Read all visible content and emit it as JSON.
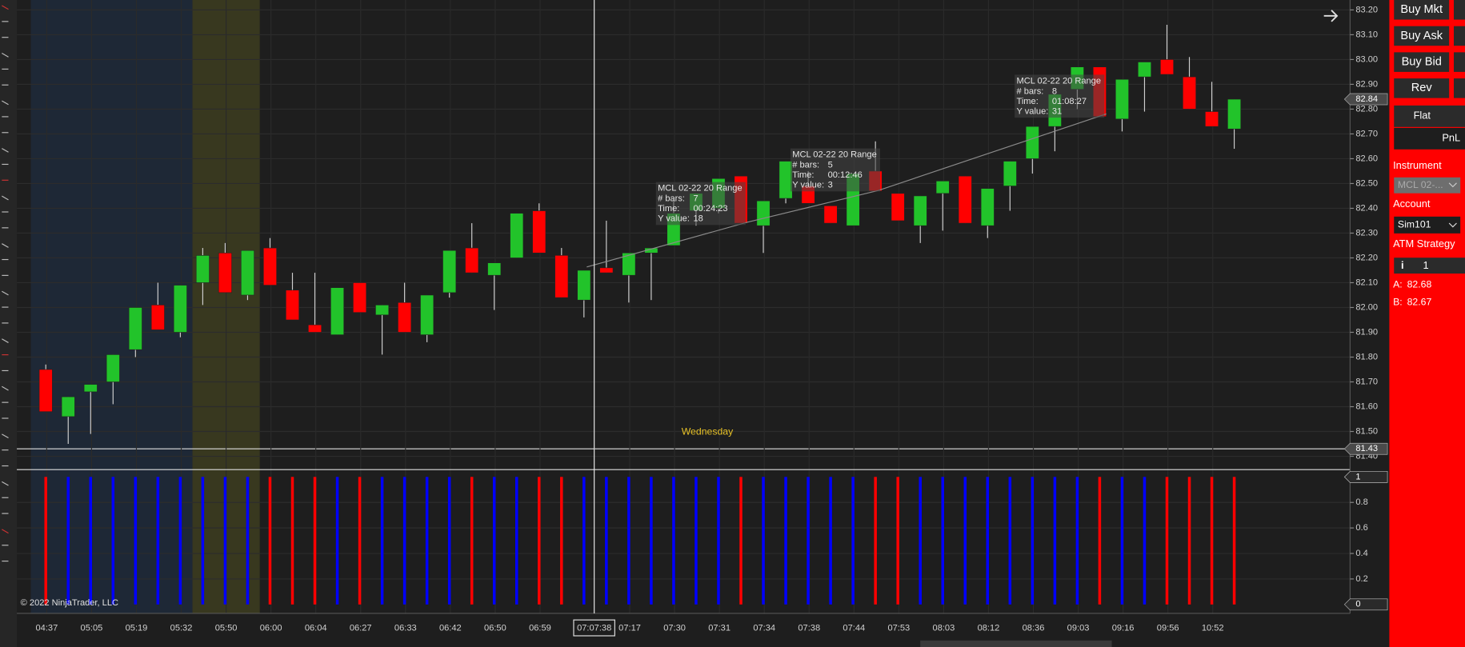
{
  "chart": {
    "type": "candlestick",
    "categories": [
      "04:37",
      null,
      "05:05",
      null,
      "05:19",
      null,
      "05:32",
      null,
      "05:50",
      null,
      "06:00",
      null,
      "06:04",
      null,
      "06:27",
      null,
      "06:33",
      null,
      "06:42",
      null,
      "06:50",
      null,
      "06:59",
      null,
      "07:07:38",
      null,
      "07:17",
      null,
      "07:30",
      null,
      "07:31",
      null,
      "07:34",
      null,
      "07:38",
      null,
      "07:44",
      null,
      "07:53",
      null,
      "08:03",
      null,
      "08:12",
      null,
      "08:36",
      null,
      "09:03",
      null,
      "09:16",
      null,
      "09:56",
      null,
      "10:52",
      null
    ],
    "open": [
      81.75,
      81.56,
      81.66,
      81.7,
      81.83,
      82.01,
      81.9,
      82.1,
      82.22,
      82.05,
      82.24,
      82.07,
      81.93,
      81.89,
      82.1,
      81.97,
      82.02,
      81.89,
      82.06,
      82.24,
      82.13,
      82.2,
      82.39,
      82.21,
      82.03,
      82.16,
      82.13,
      82.22,
      82.25,
      82.39,
      82.4,
      82.53,
      82.33,
      82.44,
      82.49,
      82.41,
      82.33,
      82.55,
      82.46,
      82.33,
      82.46,
      82.53,
      82.33,
      82.49,
      82.6,
      82.73,
      82.88,
      82.97,
      82.76,
      82.93,
      83.0,
      82.93,
      82.79,
      82.72
    ],
    "high": [
      81.77,
      81.64,
      81.69,
      81.81,
      82.0,
      82.1,
      82.09,
      82.24,
      82.26,
      82.23,
      82.28,
      82.14,
      82.14,
      82.08,
      82.1,
      82.01,
      82.1,
      82.05,
      82.23,
      82.34,
      82.18,
      82.38,
      82.42,
      82.24,
      82.15,
      82.35,
      82.22,
      82.24,
      82.43,
      82.46,
      82.52,
      82.53,
      82.43,
      82.59,
      82.55,
      82.41,
      82.54,
      82.67,
      82.46,
      82.45,
      82.51,
      82.53,
      82.48,
      82.59,
      82.73,
      82.86,
      82.97,
      82.97,
      82.92,
      82.99,
      83.14,
      83.01,
      82.91,
      82.84
    ],
    "low": [
      81.58,
      81.45,
      81.49,
      81.61,
      81.8,
      81.91,
      81.88,
      82.01,
      82.06,
      82.03,
      82.09,
      81.95,
      81.9,
      81.89,
      81.98,
      81.81,
      81.9,
      81.86,
      82.04,
      82.14,
      81.99,
      82.2,
      82.22,
      82.04,
      81.96,
      82.14,
      82.02,
      82.03,
      82.25,
      82.33,
      82.38,
      82.34,
      82.22,
      82.42,
      82.42,
      82.34,
      82.33,
      82.47,
      82.35,
      82.26,
      82.31,
      82.34,
      82.28,
      82.39,
      82.54,
      82.63,
      82.8,
      82.77,
      82.71,
      82.79,
      82.94,
      82.8,
      82.73,
      82.64
    ],
    "close": [
      81.58,
      81.64,
      81.69,
      81.81,
      82.0,
      81.91,
      82.09,
      82.21,
      82.06,
      82.23,
      82.09,
      81.95,
      81.9,
      82.08,
      81.98,
      82.01,
      81.9,
      82.05,
      82.23,
      82.14,
      82.18,
      82.38,
      82.22,
      82.04,
      82.15,
      82.14,
      82.22,
      82.24,
      82.38,
      82.46,
      82.52,
      82.34,
      82.43,
      82.59,
      82.42,
      82.34,
      82.54,
      82.47,
      82.35,
      82.45,
      82.51,
      82.34,
      82.48,
      82.59,
      82.73,
      82.86,
      82.97,
      82.77,
      82.92,
      82.99,
      82.94,
      82.8,
      82.73,
      82.84
    ],
    "up_color": "#22c32a",
    "down_color": "#ff0000",
    "ylim": [
      81.35,
      83.24
    ],
    "yticks": [
      {
        "value": 81.4,
        "label": "81.40"
      },
      {
        "value": 81.5,
        "label": "81.50"
      },
      {
        "value": 81.6,
        "label": "81.60"
      },
      {
        "value": 81.7,
        "label": "81.70"
      },
      {
        "value": 81.8,
        "label": "81.80"
      },
      {
        "value": 81.9,
        "label": "81.90"
      },
      {
        "value": 82,
        "label": "82.00"
      },
      {
        "value": 82.1,
        "label": "82.10"
      },
      {
        "value": 82.2,
        "label": "82.20"
      },
      {
        "value": 82.3,
        "label": "82.30"
      },
      {
        "value": 82.4,
        "label": "82.40"
      },
      {
        "value": 82.5,
        "label": "82.50"
      },
      {
        "value": 82.6,
        "label": "82.60"
      },
      {
        "value": 82.7,
        "label": "82.70"
      },
      {
        "value": 82.8,
        "label": "82.80"
      },
      {
        "value": 82.9,
        "label": "82.90"
      },
      {
        "value": 83,
        "label": "83.00"
      },
      {
        "value": 83.1,
        "label": "83.10"
      },
      {
        "value": 83.2,
        "label": "83.20"
      }
    ],
    "markers": [
      {
        "value": 82.84,
        "label": "82.84"
      },
      {
        "value": 81.43,
        "label": "81.43"
      }
    ],
    "grid": true,
    "annotation": "Wednesday",
    "copyright": "© 2022 NinjaTrader, LLC",
    "tooltips": [
      {
        "title": "MCL 02-22 20 Range",
        "rows": [
          [
            "# bars:",
            "7"
          ],
          [
            "Time:",
            "00:24:23"
          ],
          [
            "Y value:",
            "18"
          ]
        ]
      },
      {
        "title": "MCL 02-22 20 Range",
        "rows": [
          [
            "# bars:",
            "5"
          ],
          [
            "Time:",
            "00:12:46"
          ],
          [
            "Y value:",
            "3"
          ]
        ]
      },
      {
        "title": "MCL 02-22 20 Range",
        "rows": [
          [
            "# bars:",
            "8"
          ],
          [
            "Time:",
            "01:08:27"
          ],
          [
            "Y value:",
            "31"
          ]
        ]
      }
    ],
    "indicator": {
      "type": "bar",
      "values": [
        1,
        1,
        1,
        1,
        1,
        1,
        1,
        1,
        1,
        1,
        1,
        1,
        1,
        1,
        1,
        1,
        1,
        1,
        1,
        1,
        1,
        1,
        1,
        1,
        1,
        1,
        1,
        1,
        1,
        1,
        1,
        1,
        1,
        1,
        1,
        1,
        1,
        1,
        1,
        1,
        1,
        1,
        1,
        1,
        1,
        1,
        1,
        1,
        1,
        1,
        1,
        1,
        1,
        1
      ],
      "colors": [
        "#ff0000",
        "#0000ff",
        "#0000ff",
        "#0000ff",
        "#0000ff",
        "#0000ff",
        "#0000ff",
        "#0000ff",
        "#0000ff",
        "#0000ff",
        "#ff0000",
        "#ff0000",
        "#ff0000",
        "#0000ff",
        "#ff0000",
        "#0000ff",
        "#0000ff",
        "#0000ff",
        "#0000ff",
        "#ff0000",
        "#0000ff",
        "#0000ff",
        "#ff0000",
        "#ff0000",
        "#0000ff",
        "#0000ff",
        "#0000ff",
        "#0000ff",
        "#0000ff",
        "#0000ff",
        "#0000ff",
        "#ff0000",
        "#0000ff",
        "#0000ff",
        "#0000ff",
        "#0000ff",
        "#0000ff",
        "#ff0000",
        "#ff0000",
        "#0000ff",
        "#0000ff",
        "#0000ff",
        "#0000ff",
        "#0000ff",
        "#0000ff",
        "#0000ff",
        "#0000ff",
        "#ff0000",
        "#0000ff",
        "#0000ff",
        "#ff0000",
        "#ff0000",
        "#ff0000",
        "#ff0000"
      ],
      "ylim": [
        -0.07,
        1.05
      ],
      "yticks": [
        0.2,
        0.4,
        0.6,
        0.8
      ],
      "markers": [
        1,
        0
      ]
    }
  },
  "panel": {
    "buttons": [
      "Buy Mkt",
      "Buy Ask",
      "Buy Bid",
      "Rev"
    ],
    "flat": "Flat",
    "pnl": "PnL",
    "instrument_label": "Instrument",
    "instrument": "MCL 02-...",
    "account_label": "Account",
    "account": "Sim101",
    "atm_label": "ATM Strategy",
    "atm_info": "i",
    "atm_value": "1",
    "ask": {
      "label": "A:",
      "value": "82.68"
    },
    "bid": {
      "label": "B:",
      "value": "82.67"
    }
  }
}
